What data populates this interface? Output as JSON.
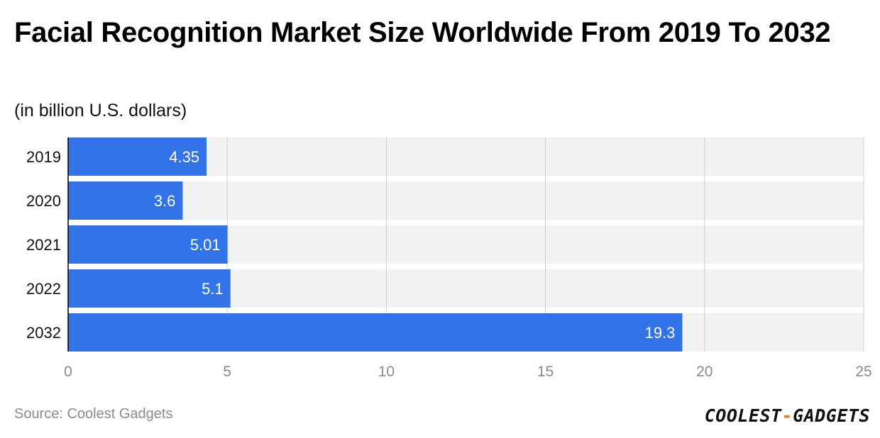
{
  "title": "Facial Recognition Market Size Worldwide From 2019 To 2032",
  "subtitle": "(in billion U.S. dollars)",
  "source": "Source: Coolest Gadgets",
  "logo": {
    "left": "COOLEST",
    "dash": "-",
    "right": "GADGETS"
  },
  "colors": {
    "bar": "#3373e8",
    "row_background": "#f2f2f2",
    "grid": "#cccccc",
    "tick_label": "#8a8a8a",
    "accent": "#e07a1f"
  },
  "chart_data": {
    "type": "bar",
    "orientation": "horizontal",
    "categories": [
      "2019",
      "2020",
      "2021",
      "2022",
      "2032"
    ],
    "values": [
      4.35,
      3.6,
      5.01,
      5.1,
      19.3
    ],
    "value_labels": [
      "4.35",
      "3.6",
      "5.01",
      "5.1",
      "19.3"
    ],
    "xlim": [
      0,
      25
    ],
    "xticks": [
      0,
      5,
      10,
      15,
      20,
      25
    ],
    "xtick_labels": [
      "0",
      "5",
      "10",
      "15",
      "20",
      "25"
    ],
    "grid": true,
    "legend": "none",
    "title": "Facial Recognition Market Size Worldwide From 2019 To 2032",
    "xlabel": "",
    "ylabel": ""
  }
}
